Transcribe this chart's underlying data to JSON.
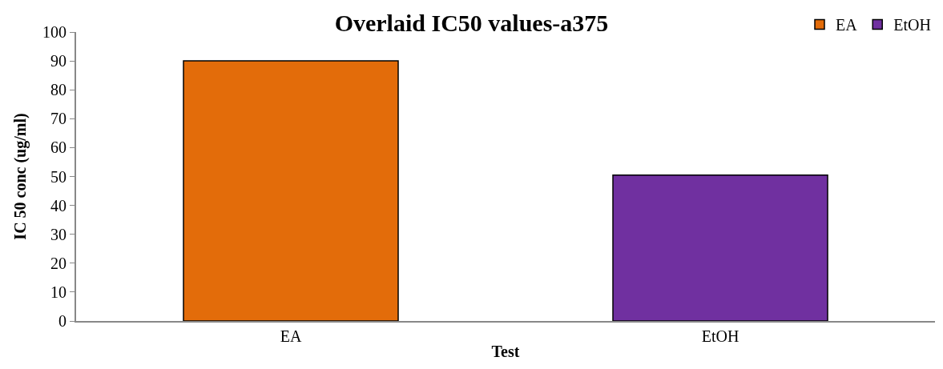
{
  "chart_data": {
    "type": "bar",
    "title": "Overlaid IC50 values-a375",
    "xlabel": "Test",
    "ylabel": "IC 50 conc (ug/ml)",
    "categories": [
      "EA",
      "EtOH"
    ],
    "series": [
      {
        "name": "EA",
        "color": "#e36c0a",
        "values": [
          90,
          null
        ]
      },
      {
        "name": "EtOH",
        "color": "#7030a0",
        "values": [
          null,
          50.5
        ]
      }
    ],
    "ylim": [
      0,
      100
    ],
    "yticks": [
      0,
      10,
      20,
      30,
      40,
      50,
      60,
      70,
      80,
      90,
      100
    ],
    "legend": "top right"
  }
}
